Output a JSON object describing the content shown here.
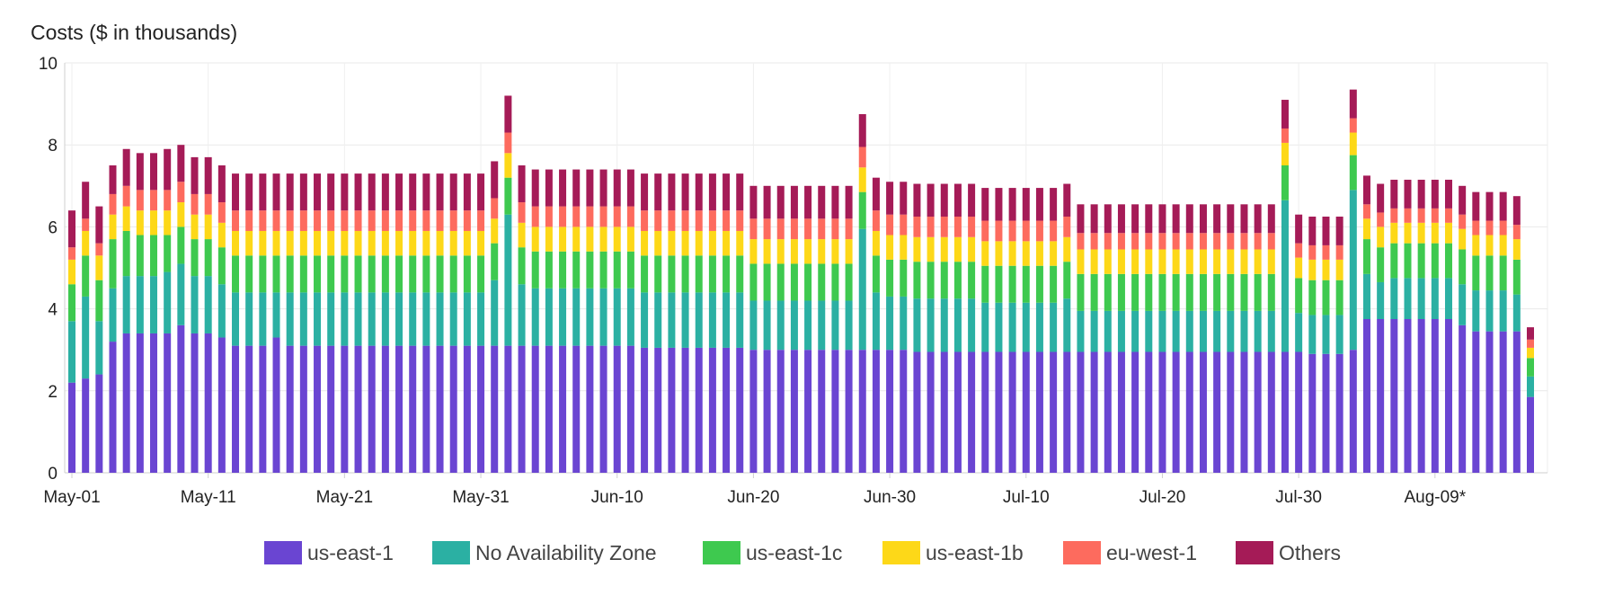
{
  "chart_data": {
    "type": "bar",
    "stacked": true,
    "title": "Costs ($ in thousands)",
    "xlabel": "",
    "ylabel": "",
    "ylim": [
      0,
      10
    ],
    "yticks": [
      "0",
      "2",
      "4",
      "6",
      "8",
      "10"
    ],
    "grid": true,
    "legend_position": "bottom",
    "x_tick_labels": [
      "May-01",
      "May-11",
      "May-21",
      "May-31",
      "Jun-10",
      "Jun-20",
      "Jun-30",
      "Jul-10",
      "Jul-20",
      "Jul-30",
      "Aug-09*"
    ],
    "categories": [
      "May-01",
      "May-02",
      "May-03",
      "May-04",
      "May-05",
      "May-06",
      "May-07",
      "May-08",
      "May-09",
      "May-10",
      "May-11",
      "May-12",
      "May-13",
      "May-14",
      "May-15",
      "May-16",
      "May-17",
      "May-18",
      "May-19",
      "May-20",
      "May-21",
      "May-22",
      "May-23",
      "May-24",
      "May-25",
      "May-26",
      "May-27",
      "May-28",
      "May-29",
      "May-30",
      "May-31",
      "Jun-01",
      "Jun-02",
      "Jun-03",
      "Jun-04",
      "Jun-05",
      "Jun-06",
      "Jun-07",
      "Jun-08",
      "Jun-09",
      "Jun-10",
      "Jun-11",
      "Jun-12",
      "Jun-13",
      "Jun-14",
      "Jun-15",
      "Jun-16",
      "Jun-17",
      "Jun-18",
      "Jun-19",
      "Jun-20",
      "Jun-21",
      "Jun-22",
      "Jun-23",
      "Jun-24",
      "Jun-25",
      "Jun-26",
      "Jun-27",
      "Jun-28",
      "Jun-29",
      "Jun-30",
      "Jul-01",
      "Jul-02",
      "Jul-03",
      "Jul-04",
      "Jul-05",
      "Jul-06",
      "Jul-07",
      "Jul-08",
      "Jul-09",
      "Jul-10",
      "Jul-11",
      "Jul-12",
      "Jul-13",
      "Jul-14",
      "Jul-15",
      "Jul-16",
      "Jul-17",
      "Jul-18",
      "Jul-19",
      "Jul-20",
      "Jul-21",
      "Jul-22",
      "Jul-23",
      "Jul-24",
      "Jul-25",
      "Jul-26",
      "Jul-27",
      "Jul-28",
      "Jul-29",
      "Jul-30",
      "Jul-31",
      "Aug-01",
      "Aug-02",
      "Aug-03",
      "Aug-04",
      "Aug-05",
      "Aug-06",
      "Aug-07",
      "Aug-08",
      "Aug-09",
      "Aug-10",
      "Aug-11",
      "Aug-12",
      "Aug-13",
      "Aug-14",
      "Aug-15",
      "Aug-16"
    ],
    "series": [
      {
        "name": "us-east-1",
        "color": "#6a45d2",
        "values": [
          2.2,
          2.3,
          2.4,
          3.2,
          3.4,
          3.4,
          3.4,
          3.4,
          3.6,
          3.4,
          3.4,
          3.3,
          3.1,
          3.1,
          3.1,
          3.3,
          3.1,
          3.1,
          3.1,
          3.1,
          3.1,
          3.1,
          3.1,
          3.1,
          3.1,
          3.1,
          3.1,
          3.1,
          3.1,
          3.1,
          3.1,
          3.1,
          3.1,
          3.1,
          3.1,
          3.1,
          3.1,
          3.1,
          3.1,
          3.1,
          3.1,
          3.1,
          3.05,
          3.05,
          3.05,
          3.05,
          3.05,
          3.05,
          3.05,
          3.05,
          3.0,
          3.0,
          3.0,
          3.0,
          3.0,
          3.0,
          3.0,
          3.0,
          3.0,
          3.0,
          3.0,
          3.0,
          2.95,
          2.95,
          2.95,
          2.95,
          2.95,
          2.95,
          2.95,
          2.95,
          2.95,
          2.95,
          2.95,
          2.95,
          2.95,
          2.95,
          2.95,
          2.95,
          2.95,
          2.95,
          2.95,
          2.95,
          2.95,
          2.95,
          2.95,
          2.95,
          2.95,
          2.95,
          2.95,
          2.95,
          2.95,
          2.9,
          2.9,
          2.9,
          3.0,
          3.75,
          3.75,
          3.75,
          3.75,
          3.75,
          3.75,
          3.75,
          3.6,
          3.45,
          3.45,
          3.45,
          3.45,
          1.85
        ]
      },
      {
        "name": "No Availability Zone",
        "color": "#2bb0a3",
        "values": [
          1.5,
          2.0,
          1.3,
          1.3,
          1.4,
          1.4,
          1.4,
          1.5,
          1.5,
          1.4,
          1.4,
          1.3,
          1.3,
          1.3,
          1.3,
          1.1,
          1.3,
          1.3,
          1.3,
          1.3,
          1.3,
          1.3,
          1.3,
          1.3,
          1.3,
          1.3,
          1.3,
          1.3,
          1.3,
          1.3,
          1.3,
          1.6,
          3.2,
          1.5,
          1.4,
          1.4,
          1.4,
          1.4,
          1.4,
          1.4,
          1.4,
          1.4,
          1.35,
          1.35,
          1.35,
          1.35,
          1.35,
          1.35,
          1.35,
          1.35,
          1.2,
          1.2,
          1.2,
          1.2,
          1.2,
          1.2,
          1.2,
          1.2,
          2.95,
          1.4,
          1.3,
          1.3,
          1.3,
          1.3,
          1.3,
          1.3,
          1.3,
          1.2,
          1.2,
          1.2,
          1.2,
          1.2,
          1.2,
          1.3,
          1.0,
          1.0,
          1.0,
          1.0,
          1.0,
          1.0,
          1.0,
          1.0,
          1.0,
          1.0,
          1.0,
          1.0,
          1.0,
          1.0,
          1.0,
          3.7,
          0.95,
          0.95,
          0.95,
          0.95,
          3.9,
          1.1,
          0.9,
          1.0,
          1.0,
          1.0,
          1.0,
          1.0,
          1.0,
          1.0,
          1.0,
          1.0,
          0.9,
          0.5
        ]
      },
      {
        "name": "us-east-1c",
        "color": "#3ec94f",
        "values": [
          0.9,
          1.0,
          1.0,
          1.2,
          1.1,
          1.0,
          1.0,
          0.9,
          0.9,
          0.9,
          0.9,
          0.9,
          0.9,
          0.9,
          0.9,
          0.9,
          0.9,
          0.9,
          0.9,
          0.9,
          0.9,
          0.9,
          0.9,
          0.9,
          0.9,
          0.9,
          0.9,
          0.9,
          0.9,
          0.9,
          0.9,
          0.9,
          0.9,
          0.9,
          0.9,
          0.9,
          0.9,
          0.9,
          0.9,
          0.9,
          0.9,
          0.9,
          0.9,
          0.9,
          0.9,
          0.9,
          0.9,
          0.9,
          0.9,
          0.9,
          0.9,
          0.9,
          0.9,
          0.9,
          0.9,
          0.9,
          0.9,
          0.9,
          0.9,
          0.9,
          0.9,
          0.9,
          0.9,
          0.9,
          0.9,
          0.9,
          0.9,
          0.9,
          0.9,
          0.9,
          0.9,
          0.9,
          0.9,
          0.9,
          0.9,
          0.9,
          0.9,
          0.9,
          0.9,
          0.9,
          0.9,
          0.9,
          0.9,
          0.9,
          0.9,
          0.9,
          0.9,
          0.9,
          0.9,
          0.85,
          0.85,
          0.85,
          0.85,
          0.85,
          0.85,
          0.85,
          0.85,
          0.85,
          0.85,
          0.85,
          0.85,
          0.85,
          0.85,
          0.85,
          0.85,
          0.85,
          0.85,
          0.45
        ]
      },
      {
        "name": "us-east-1b",
        "color": "#fdd818",
        "values": [
          0.6,
          0.6,
          0.6,
          0.6,
          0.6,
          0.6,
          0.6,
          0.6,
          0.6,
          0.6,
          0.6,
          0.6,
          0.6,
          0.6,
          0.6,
          0.6,
          0.6,
          0.6,
          0.6,
          0.6,
          0.6,
          0.6,
          0.6,
          0.6,
          0.6,
          0.6,
          0.6,
          0.6,
          0.6,
          0.6,
          0.6,
          0.6,
          0.6,
          0.6,
          0.6,
          0.6,
          0.6,
          0.6,
          0.6,
          0.6,
          0.6,
          0.6,
          0.6,
          0.6,
          0.6,
          0.6,
          0.6,
          0.6,
          0.6,
          0.6,
          0.6,
          0.6,
          0.6,
          0.6,
          0.6,
          0.6,
          0.6,
          0.6,
          0.6,
          0.6,
          0.6,
          0.6,
          0.6,
          0.6,
          0.6,
          0.6,
          0.6,
          0.6,
          0.6,
          0.6,
          0.6,
          0.6,
          0.6,
          0.6,
          0.6,
          0.6,
          0.6,
          0.6,
          0.6,
          0.6,
          0.6,
          0.6,
          0.6,
          0.6,
          0.6,
          0.6,
          0.6,
          0.6,
          0.6,
          0.55,
          0.5,
          0.5,
          0.5,
          0.5,
          0.55,
          0.5,
          0.5,
          0.5,
          0.5,
          0.5,
          0.5,
          0.5,
          0.5,
          0.5,
          0.5,
          0.5,
          0.5,
          0.25
        ]
      },
      {
        "name": "eu-west-1",
        "color": "#fd6b5e",
        "values": [
          0.3,
          0.3,
          0.3,
          0.5,
          0.5,
          0.5,
          0.5,
          0.5,
          0.5,
          0.5,
          0.5,
          0.5,
          0.5,
          0.5,
          0.5,
          0.5,
          0.5,
          0.5,
          0.5,
          0.5,
          0.5,
          0.5,
          0.5,
          0.5,
          0.5,
          0.5,
          0.5,
          0.5,
          0.5,
          0.5,
          0.5,
          0.5,
          0.5,
          0.5,
          0.5,
          0.5,
          0.5,
          0.5,
          0.5,
          0.5,
          0.5,
          0.5,
          0.5,
          0.5,
          0.5,
          0.5,
          0.5,
          0.5,
          0.5,
          0.5,
          0.5,
          0.5,
          0.5,
          0.5,
          0.5,
          0.5,
          0.5,
          0.5,
          0.5,
          0.5,
          0.5,
          0.5,
          0.5,
          0.5,
          0.5,
          0.5,
          0.5,
          0.5,
          0.5,
          0.5,
          0.5,
          0.5,
          0.5,
          0.5,
          0.4,
          0.4,
          0.4,
          0.4,
          0.4,
          0.4,
          0.4,
          0.4,
          0.4,
          0.4,
          0.4,
          0.4,
          0.4,
          0.4,
          0.4,
          0.35,
          0.35,
          0.35,
          0.35,
          0.35,
          0.35,
          0.35,
          0.35,
          0.35,
          0.35,
          0.35,
          0.35,
          0.35,
          0.35,
          0.35,
          0.35,
          0.35,
          0.35,
          0.2
        ]
      },
      {
        "name": "Others",
        "color": "#a51b57",
        "values": [
          0.9,
          0.9,
          0.9,
          0.7,
          0.9,
          0.9,
          0.9,
          1.0,
          0.9,
          0.9,
          0.9,
          0.9,
          0.9,
          0.9,
          0.9,
          0.9,
          0.9,
          0.9,
          0.9,
          0.9,
          0.9,
          0.9,
          0.9,
          0.9,
          0.9,
          0.9,
          0.9,
          0.9,
          0.9,
          0.9,
          0.9,
          0.9,
          0.9,
          0.9,
          0.9,
          0.9,
          0.9,
          0.9,
          0.9,
          0.9,
          0.9,
          0.9,
          0.9,
          0.9,
          0.9,
          0.9,
          0.9,
          0.9,
          0.9,
          0.9,
          0.8,
          0.8,
          0.8,
          0.8,
          0.8,
          0.8,
          0.8,
          0.8,
          0.8,
          0.8,
          0.8,
          0.8,
          0.8,
          0.8,
          0.8,
          0.8,
          0.8,
          0.8,
          0.8,
          0.8,
          0.8,
          0.8,
          0.8,
          0.8,
          0.7,
          0.7,
          0.7,
          0.7,
          0.7,
          0.7,
          0.7,
          0.7,
          0.7,
          0.7,
          0.7,
          0.7,
          0.7,
          0.7,
          0.7,
          0.7,
          0.7,
          0.7,
          0.7,
          0.7,
          0.7,
          0.7,
          0.7,
          0.7,
          0.7,
          0.7,
          0.7,
          0.7,
          0.7,
          0.7,
          0.7,
          0.7,
          0.7,
          0.3
        ]
      }
    ]
  }
}
